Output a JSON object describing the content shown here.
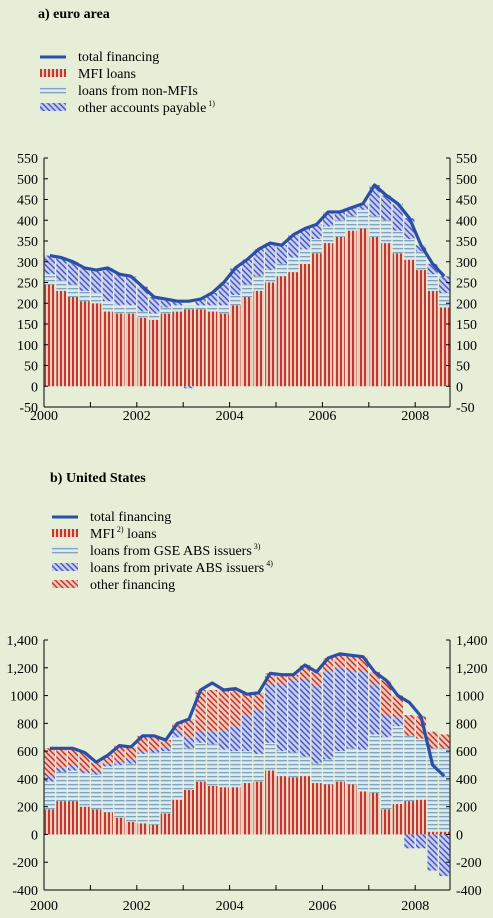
{
  "chart_data": [
    {
      "type": "bar",
      "stacked": true,
      "title": "a) euro area",
      "categories": [
        "2000",
        null,
        null,
        null,
        null,
        null,
        null,
        null,
        "2002",
        null,
        null,
        null,
        null,
        null,
        null,
        null,
        "2004",
        null,
        null,
        null,
        null,
        null,
        null,
        null,
        "2006",
        null,
        null,
        null,
        null,
        null,
        null,
        null,
        "2008",
        null,
        null
      ],
      "series": [
        {
          "name": "total financing",
          "type": "line",
          "color": "#2b4ea6",
          "values": [
            315,
            310,
            300,
            285,
            280,
            285,
            270,
            265,
            240,
            215,
            210,
            205,
            205,
            210,
            225,
            250,
            285,
            305,
            330,
            345,
            340,
            365,
            380,
            390,
            420,
            420,
            430,
            440,
            485,
            460,
            440,
            405,
            340,
            295,
            265
          ]
        },
        {
          "name": "MFI loans",
          "type": "bar",
          "hatch": "vertical",
          "color": "#c0392b",
          "background": "#f2c7bd",
          "values": [
            245,
            230,
            215,
            205,
            200,
            180,
            175,
            175,
            165,
            160,
            175,
            180,
            185,
            185,
            180,
            175,
            195,
            215,
            230,
            250,
            265,
            275,
            295,
            320,
            345,
            360,
            375,
            380,
            360,
            345,
            320,
            305,
            280,
            230,
            190
          ]
        },
        {
          "name": "loans from non-MFIs",
          "type": "bar",
          "hatch": "horizontal",
          "color": "#7fa3b8",
          "background": "#dbe9ee",
          "values": [
            25,
            25,
            30,
            25,
            25,
            25,
            20,
            20,
            15,
            15,
            15,
            15,
            10,
            10,
            15,
            20,
            25,
            30,
            35,
            30,
            30,
            35,
            35,
            35,
            40,
            40,
            35,
            45,
            50,
            55,
            55,
            50,
            45,
            40,
            35
          ]
        },
        {
          "name": "other accounts payable",
          "note": "1)",
          "type": "bar",
          "hatch": "diagonal",
          "color": "#4a5bc4",
          "background": "#c9cff0",
          "values": [
            45,
            55,
            55,
            55,
            55,
            80,
            75,
            70,
            60,
            40,
            20,
            10,
            -5,
            15,
            30,
            55,
            65,
            60,
            65,
            65,
            45,
            55,
            50,
            35,
            35,
            20,
            20,
            15,
            75,
            60,
            65,
            50,
            15,
            25,
            40
          ]
        }
      ],
      "ylim": [
        -50,
        550
      ],
      "yticks": [
        -50,
        0,
        50,
        100,
        150,
        200,
        250,
        300,
        350,
        400,
        450,
        500,
        550
      ],
      "y2lim": [
        -50,
        550
      ],
      "y2ticks": [
        -50,
        0,
        50,
        100,
        150,
        200,
        250,
        300,
        350,
        400,
        450,
        500,
        550
      ]
    },
    {
      "type": "bar",
      "stacked": true,
      "title": "b) United States",
      "categories": [
        "2000",
        null,
        null,
        null,
        null,
        null,
        null,
        null,
        "2002",
        null,
        null,
        null,
        null,
        null,
        null,
        null,
        "2004",
        null,
        null,
        null,
        null,
        null,
        null,
        null,
        "2006",
        null,
        null,
        null,
        null,
        null,
        null,
        null,
        "2008",
        null,
        null
      ],
      "series": [
        {
          "name": "total financing",
          "type": "line",
          "color": "#2b4ea6",
          "values": [
            620,
            620,
            620,
            590,
            520,
            570,
            640,
            630,
            710,
            710,
            680,
            800,
            830,
            1040,
            1090,
            1040,
            1050,
            1010,
            1020,
            1160,
            1150,
            1150,
            1220,
            1170,
            1270,
            1300,
            1290,
            1280,
            1170,
            1110,
            1000,
            950,
            850,
            500,
            420
          ]
        },
        {
          "name": "MFI",
          "note": "2)",
          "suffix": " loans",
          "type": "bar",
          "hatch": "vertical",
          "color": "#c0392b",
          "background": "#f2c7bd",
          "values": [
            180,
            240,
            240,
            200,
            180,
            160,
            120,
            90,
            80,
            70,
            150,
            250,
            320,
            380,
            350,
            340,
            340,
            370,
            380,
            460,
            420,
            410,
            420,
            370,
            360,
            380,
            360,
            310,
            300,
            180,
            220,
            240,
            250,
            20,
            20
          ]
        },
        {
          "name": "loans from GSE ABS issuers",
          "note": "3)",
          "type": "bar",
          "hatch": "horizontal",
          "color": "#7fa3b8",
          "background": "#dbe9ee",
          "values": [
            200,
            210,
            220,
            240,
            250,
            330,
            380,
            420,
            500,
            520,
            450,
            450,
            300,
            280,
            300,
            270,
            260,
            230,
            200,
            200,
            180,
            180,
            140,
            140,
            180,
            220,
            260,
            300,
            420,
            520,
            560,
            470,
            440,
            600,
            600
          ]
        },
        {
          "name": "loans from private ABS issuers",
          "note": "4)",
          "type": "bar",
          "hatch": "diagonal",
          "color": "#4a5bc4",
          "background": "#c9cff0",
          "values": [
            40,
            30,
            40,
            20,
            20,
            20,
            30,
            30,
            20,
            20,
            30,
            50,
            80,
            80,
            90,
            140,
            180,
            260,
            320,
            420,
            480,
            520,
            560,
            560,
            640,
            600,
            560,
            560,
            360,
            160,
            60,
            -100,
            -100,
            -260,
            -300
          ]
        },
        {
          "name": "other financing",
          "type": "bar",
          "hatch": "diagonal",
          "color": "#c0392b",
          "background": "#f2c7bd",
          "values": [
            200,
            140,
            120,
            130,
            70,
            60,
            110,
            90,
            110,
            100,
            50,
            50,
            130,
            300,
            300,
            290,
            270,
            150,
            120,
            80,
            70,
            40,
            100,
            100,
            90,
            100,
            110,
            110,
            90,
            250,
            160,
            150,
            160,
            120,
            100
          ]
        }
      ],
      "ylim": [
        -400,
        1400
      ],
      "yticks": [
        -400,
        -200,
        0,
        200,
        400,
        600,
        800,
        1000,
        {
          "value": 1200,
          "label": "1,200"
        },
        {
          "value": 1400,
          "label": "1,400"
        }
      ],
      "y2lim": [
        -400,
        1400
      ],
      "y2ticks": [
        -400,
        -200,
        0,
        200,
        400,
        600,
        800,
        1000,
        {
          "value": 1200,
          "label": "1,200"
        },
        {
          "value": 1400,
          "label": "1,400"
        }
      ]
    }
  ]
}
